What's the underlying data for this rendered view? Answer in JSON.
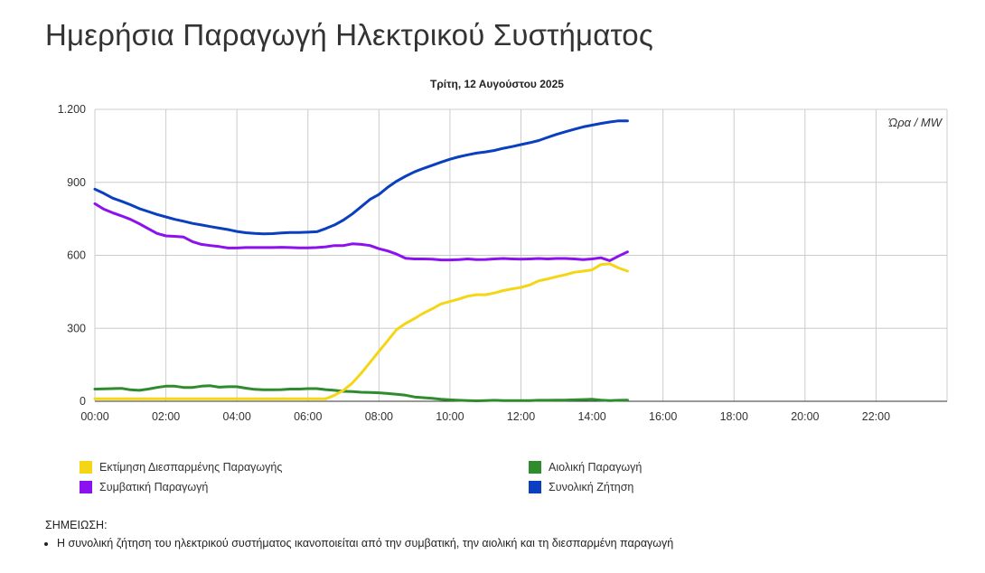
{
  "page": {
    "title": "Ημερήσια Παραγωγή Ηλεκτρικού Συστήματος"
  },
  "note": {
    "title": "ΣΗΜΕΙΩΣΗ:",
    "items": [
      "Η συνολική ζήτηση του ηλεκτρικού συστήματος ικανοποιείται από την συμβατική, την αιολική και τη διεσπαρμένη παραγωγή"
    ]
  },
  "legend": [
    {
      "label": "Εκτίμηση Διεσπαρμένης Παραγωγής",
      "color": "#f5d617"
    },
    {
      "label": "Αιολική Παραγωγή",
      "color": "#2e8b2e"
    },
    {
      "label": "Συμβατική Παραγωγή",
      "color": "#8b12ee"
    },
    {
      "label": "Συνολική Ζήτηση",
      "color": "#0a3fbf"
    }
  ],
  "chart_data": {
    "type": "line",
    "title": "Τρίτη, 12 Αυγούστου 2025",
    "annotation": "Ώρα / MW",
    "xlabel": "",
    "ylabel": "",
    "x_unit": "hours",
    "xlim": [
      0,
      24
    ],
    "ylim": [
      0,
      1200
    ],
    "grid": true,
    "y_ticks": [
      0,
      300,
      600,
      900,
      1200
    ],
    "y_tick_labels": [
      "0",
      "300",
      "600",
      "900",
      "1.200"
    ],
    "x_tick_labels": [
      "00:00",
      "02:00",
      "04:00",
      "06:00",
      "08:00",
      "10:00",
      "12:00",
      "14:00",
      "16:00",
      "18:00",
      "20:00",
      "22:00"
    ],
    "legend_position": "bottom",
    "x": [
      0,
      0.25,
      0.5,
      0.75,
      1,
      1.25,
      1.5,
      1.75,
      2,
      2.25,
      2.5,
      2.75,
      3,
      3.25,
      3.5,
      3.75,
      4,
      4.25,
      4.5,
      4.75,
      5,
      5.25,
      5.5,
      5.75,
      6,
      6.25,
      6.5,
      6.75,
      7,
      7.25,
      7.5,
      7.75,
      8,
      8.25,
      8.5,
      8.75,
      9,
      9.25,
      9.5,
      9.75,
      10,
      10.25,
      10.5,
      10.75,
      11,
      11.25,
      11.5,
      11.75,
      12,
      12.25,
      12.5,
      12.75,
      13,
      13.25,
      13.5,
      13.75,
      14,
      14.25,
      14.5,
      14.75,
      15
    ],
    "series": [
      {
        "name": "Εκτίμηση Διεσπαρμένης Παραγωγής",
        "color": "#f5d617",
        "values": [
          10,
          10,
          10,
          10,
          10,
          10,
          10,
          10,
          10,
          10,
          10,
          10,
          10,
          10,
          10,
          10,
          10,
          10,
          10,
          10,
          10,
          10,
          10,
          10,
          10,
          10,
          10,
          25,
          45,
          75,
          115,
          160,
          205,
          250,
          295,
          320,
          340,
          362,
          380,
          400,
          410,
          420,
          432,
          438,
          438,
          445,
          455,
          462,
          468,
          478,
          495,
          503,
          512,
          520,
          530,
          535,
          540,
          562,
          565,
          548,
          535
        ]
      },
      {
        "name": "Aιολική Παραγωγή",
        "color": "#2e8b2e",
        "values": [
          50,
          51,
          52,
          53,
          47,
          45,
          50,
          57,
          62,
          62,
          57,
          57,
          62,
          64,
          58,
          60,
          60,
          54,
          49,
          47,
          47,
          48,
          50,
          50,
          52,
          52,
          48,
          45,
          41,
          40,
          37,
          36,
          35,
          32,
          29,
          25,
          18,
          15,
          12,
          8,
          6,
          4,
          3,
          2,
          3,
          4,
          3,
          3,
          3,
          3,
          4,
          4,
          5,
          5,
          6,
          7,
          8,
          5,
          3,
          4,
          5
        ]
      },
      {
        "name": "Συμβατική Παραγωγή",
        "color": "#8b12ee",
        "values": [
          812,
          790,
          775,
          762,
          748,
          730,
          710,
          690,
          680,
          678,
          675,
          656,
          645,
          640,
          636,
          630,
          630,
          632,
          632,
          632,
          632,
          633,
          632,
          631,
          631,
          632,
          635,
          640,
          640,
          647,
          645,
          640,
          627,
          618,
          605,
          588,
          585,
          585,
          584,
          581,
          581,
          582,
          585,
          582,
          583,
          585,
          587,
          585,
          584,
          585,
          587,
          585,
          587,
          587,
          585,
          582,
          585,
          590,
          578,
          597,
          614
        ]
      },
      {
        "name": "Συνολική Ζήτηση",
        "color": "#0a3fbf",
        "values": [
          872,
          855,
          835,
          822,
          808,
          792,
          780,
          768,
          758,
          748,
          740,
          731,
          725,
          718,
          712,
          706,
          698,
          693,
          690,
          688,
          689,
          692,
          694,
          694,
          695,
          697,
          710,
          725,
          745,
          770,
          800,
          830,
          850,
          880,
          905,
          925,
          943,
          957,
          970,
          983,
          995,
          1005,
          1013,
          1020,
          1025,
          1031,
          1040,
          1047,
          1055,
          1063,
          1072,
          1085,
          1097,
          1108,
          1118,
          1128,
          1135,
          1142,
          1148,
          1153,
          1153
        ]
      }
    ]
  }
}
